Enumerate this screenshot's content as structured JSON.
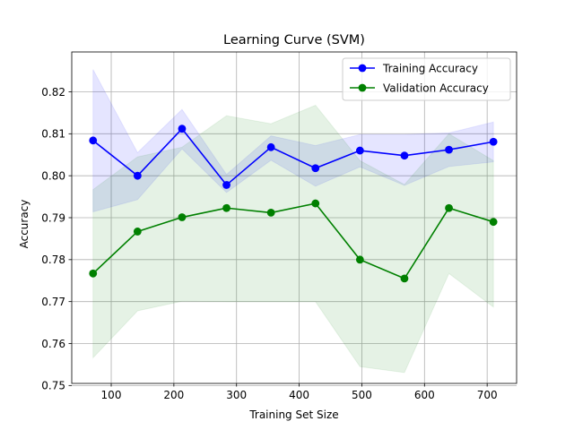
{
  "chart_data": {
    "type": "line",
    "title": "Learning Curve (SVM)",
    "xlabel": "Training Set Size",
    "ylabel": "Accuracy",
    "xlim": [
      37,
      747
    ],
    "ylim": [
      0.7505,
      0.8295
    ],
    "xticks": [
      100,
      200,
      300,
      400,
      500,
      600,
      700
    ],
    "yticks": [
      0.75,
      0.76,
      0.77,
      0.78,
      0.79,
      0.8,
      0.81,
      0.82
    ],
    "grid": true,
    "legend": "upper-right",
    "x": [
      71,
      142,
      213,
      284,
      355,
      426,
      497,
      568,
      639,
      710
    ],
    "series": [
      {
        "name": "Training Accuracy",
        "color": "#0000ff",
        "marker": "circle",
        "values": [
          0.8084,
          0.8,
          0.8112,
          0.7978,
          0.8068,
          0.8018,
          0.806,
          0.8048,
          0.8062,
          0.8081
        ],
        "band_upper": [
          0.8253,
          0.8055,
          0.8158,
          0.8003,
          0.8095,
          0.8072,
          0.8098,
          0.8098,
          0.8102,
          0.8128
        ],
        "band_lower": [
          0.7914,
          0.7943,
          0.8064,
          0.796,
          0.8037,
          0.7975,
          0.8021,
          0.7977,
          0.8022,
          0.8033
        ],
        "band_color": "#0000ff"
      },
      {
        "name": "Validation Accuracy",
        "color": "#008000",
        "marker": "circle",
        "values": [
          0.7767,
          0.7867,
          0.7901,
          0.7923,
          0.7912,
          0.7934,
          0.78,
          0.7755,
          0.7923,
          0.789
        ],
        "band_upper": [
          0.7967,
          0.8045,
          0.8068,
          0.8143,
          0.8124,
          0.8168,
          0.8036,
          0.7979,
          0.81,
          0.8036
        ],
        "band_lower": [
          0.7566,
          0.7678,
          0.7701,
          0.77,
          0.77,
          0.77,
          0.7545,
          0.7531,
          0.7767,
          0.7687
        ],
        "band_color": "#008000"
      }
    ]
  }
}
